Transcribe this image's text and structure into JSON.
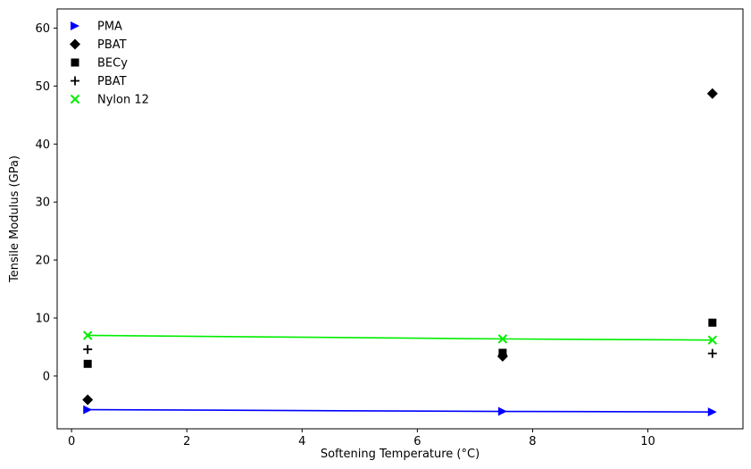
{
  "chart_data": {
    "type": "scatter",
    "title": "",
    "xlabel": "Softening Temperature (°C)",
    "ylabel": "Tensile Modulus (GPa)",
    "xlim": [
      -0.25,
      11.65
    ],
    "ylim": [
      -9.1,
      63.3
    ],
    "xticks": [
      0,
      2,
      4,
      6,
      8,
      10
    ],
    "yticks": [
      0,
      10,
      20,
      30,
      40,
      50,
      60
    ],
    "grid": false,
    "legend_position": "top-left",
    "series": [
      {
        "name": "PMA",
        "marker": "triangle-right",
        "color": "#0000ff",
        "x": [
          0.28,
          7.48,
          11.12
        ],
        "y": [
          -5.8,
          -6.1,
          -6.2
        ],
        "trendline": true
      },
      {
        "name": "PBAT",
        "marker": "diamond",
        "color": "#000000",
        "x": [
          0.28,
          7.48,
          11.12
        ],
        "y": [
          -4.1,
          3.4,
          48.7
        ],
        "trendline": false
      },
      {
        "name": "BECy",
        "marker": "square",
        "color": "#000000",
        "x": [
          0.28,
          7.48,
          11.12
        ],
        "y": [
          2.1,
          4.0,
          9.2
        ],
        "trendline": false
      },
      {
        "name": "PBAT",
        "marker": "plus",
        "color": "#000000",
        "x": [
          0.28,
          7.48,
          11.12
        ],
        "y": [
          4.6,
          3.6,
          3.9
        ],
        "trendline": false
      },
      {
        "name": "Nylon 12",
        "marker": "x",
        "color": "#00ee00",
        "x": [
          0.28,
          7.48,
          11.12
        ],
        "y": [
          7.0,
          6.4,
          6.2
        ],
        "trendline": true
      }
    ]
  }
}
